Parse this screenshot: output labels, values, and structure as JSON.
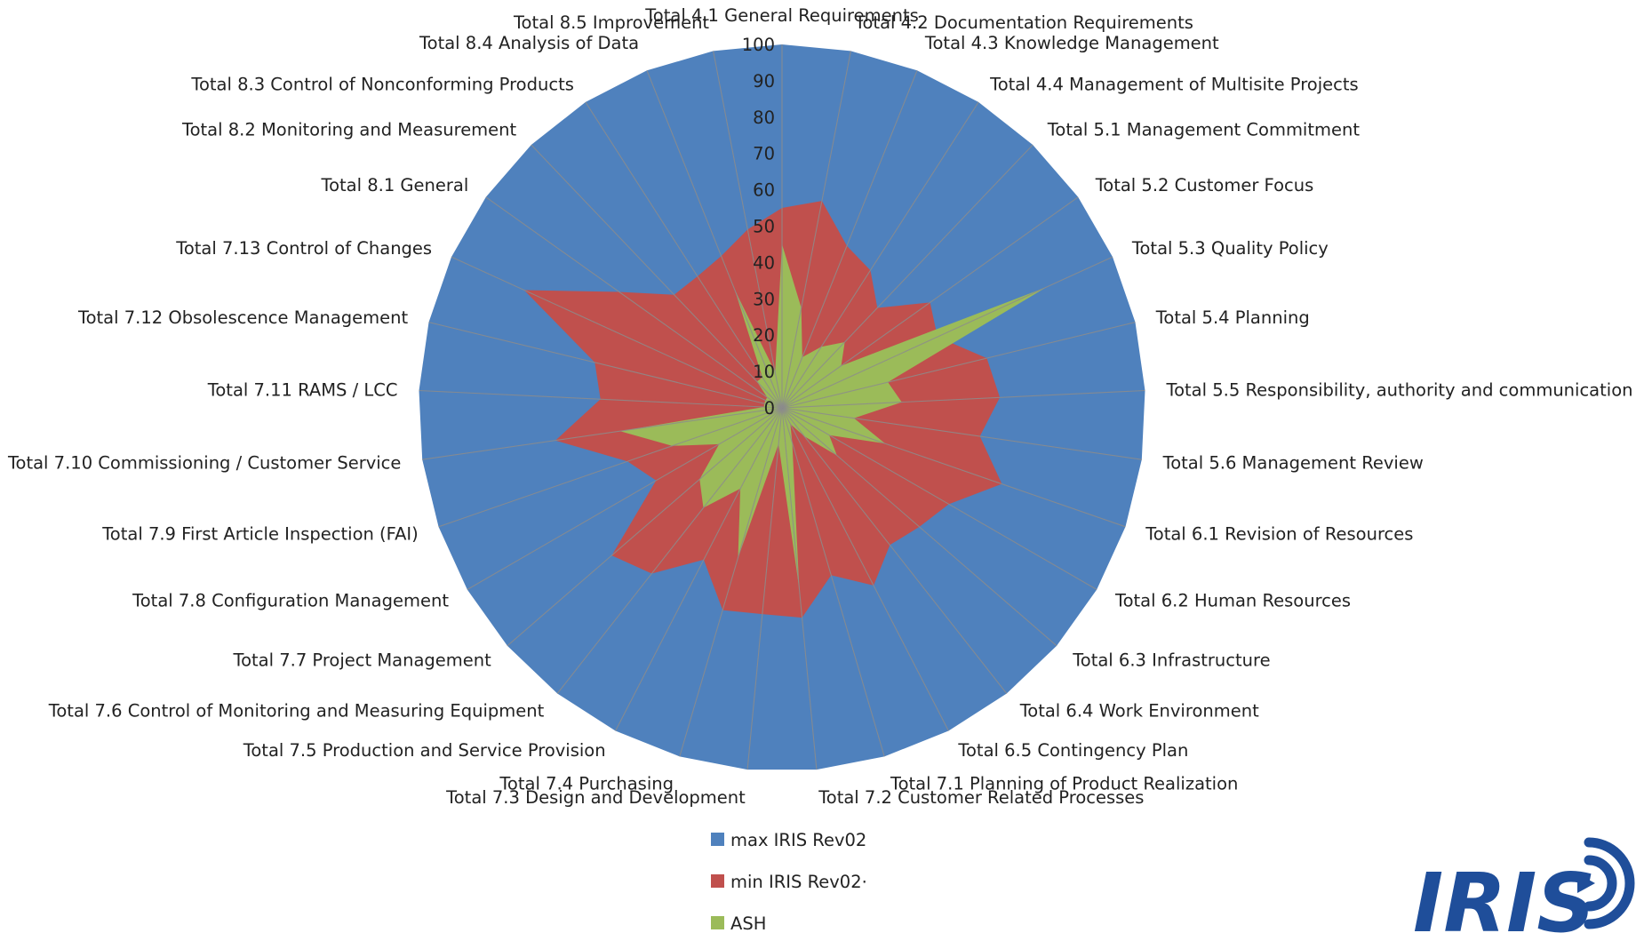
{
  "chart_data": {
    "type": "radar",
    "categories": [
      "Total 4.1 General Requirements",
      "Total 4.2 Documentation Requirements",
      "Total 4.3 Knowledge Management",
      "Total 4.4 Management of Multisite Projects",
      "Total 5.1 Management Commitment",
      "Total 5.2 Customer Focus",
      "Total 5.3 Quality Policy",
      "Total 5.4 Planning",
      "Total 5.5 Responsibility, authority and communication",
      "Total 5.6 Management Review",
      "Total 6.1 Revision of Resources",
      "Total 6.2 Human Resources",
      "Total 6.3 Infrastructure",
      "Total 6.4 Work Environment",
      "Total 6.5 Contingency Plan",
      "Total 7.1 Planning of Product Realization",
      "Total 7.2 Customer Related Processes",
      "Total 7.3 Design and Development",
      "Total 7.4 Purchasing",
      "Total 7.5 Production and Service Provision",
      "Total 7.6 Control of Monitoring and Measuring Equipment",
      "Total 7.7 Project Management",
      "Total 7.8 Configuration Management",
      "Total 7.9 First Article Inspection (FAI)",
      "Total 7.10 Commissioning / Customer Service",
      "Total 7.11 RAMS / LCC",
      "Total 7.12 Obsolescence Management",
      "Total 7.13 Control of Changes",
      "Total  8.1 General",
      "Total 8.2 Monitoring and Measurement",
      "Total 8.3 Control of Nonconforming Products",
      "Total 8.4 Analysis of Data",
      "Total 8.5 Improvement"
    ],
    "series": [
      {
        "name": "max IRIS Rev02",
        "color": "#4F81BD",
        "values": [
          100,
          100,
          100,
          100,
          100,
          100,
          100,
          100,
          100,
          100,
          100,
          100,
          100,
          100,
          100,
          100,
          100,
          100,
          100,
          100,
          100,
          100,
          100,
          100,
          100,
          100,
          100,
          100,
          100,
          100,
          100,
          100,
          100
        ]
      },
      {
        "name": "min IRIS Rev02·",
        "color": "#C0504D",
        "values": [
          55,
          58,
          48,
          45,
          38,
          50,
          47,
          58,
          60,
          55,
          64,
          53,
          50,
          48,
          55,
          48,
          58,
          57,
          58,
          47,
          58,
          62,
          40,
          45,
          63,
          50,
          53,
          78,
          55,
          43,
          43,
          45,
          50
        ]
      },
      {
        "name": "ASH",
        "color": "#9BBB59",
        "values": [
          45,
          28,
          15,
          20,
          25,
          20,
          80,
          30,
          33,
          20,
          30,
          15,
          20,
          10,
          5,
          10,
          50,
          10,
          43,
          25,
          35,
          30,
          20,
          32,
          45,
          5,
          5,
          5,
          5,
          10,
          10,
          35,
          10
        ]
      }
    ],
    "r_axis": {
      "min": 0,
      "max": 100,
      "step": 10
    },
    "ticks": [
      "0",
      "10",
      "20",
      "30",
      "40",
      "50",
      "60",
      "70",
      "80",
      "90",
      "100"
    ],
    "legend_position": "bottom"
  },
  "logo": {
    "text": "IRIS",
    "color": "#1F4E9A"
  }
}
